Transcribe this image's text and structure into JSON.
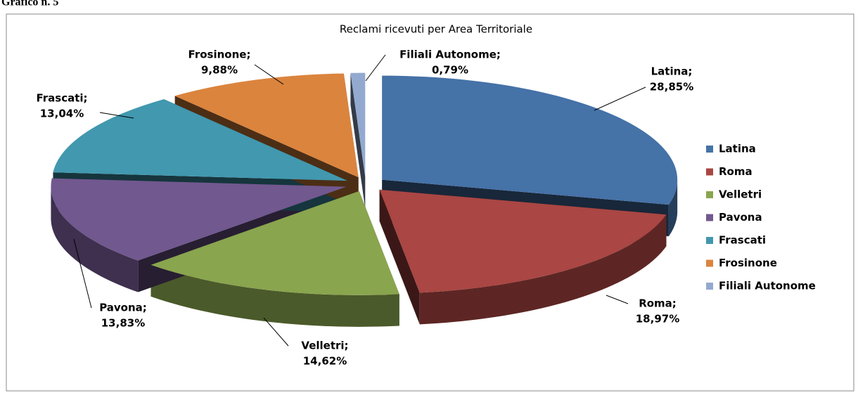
{
  "header": "Grafico n. 5",
  "chart_data": {
    "type": "pie",
    "title": "Reclami ricevuti per Area Territoriale",
    "categories": [
      "Latina",
      "Roma",
      "Velletri",
      "Pavona",
      "Frascati",
      "Frosinone",
      "Filiali Autonome"
    ],
    "values": [
      28.85,
      18.97,
      14.62,
      13.83,
      13.04,
      9.88,
      0.79
    ],
    "value_labels": [
      "28,85%",
      "18,97%",
      "14,62%",
      "13,83%",
      "13,04%",
      "9,88%",
      "0,79%"
    ],
    "data_label_names": [
      "Latina;",
      "Roma;",
      "Velletri;",
      "Pavona;",
      "Frascati;",
      "Frosinone;",
      "Filiali Autonome;"
    ],
    "colors": [
      "#4572a7",
      "#aa4643",
      "#89a54e",
      "#71588f",
      "#4198af",
      "#db843d",
      "#93a9cf"
    ],
    "legend": "right"
  }
}
